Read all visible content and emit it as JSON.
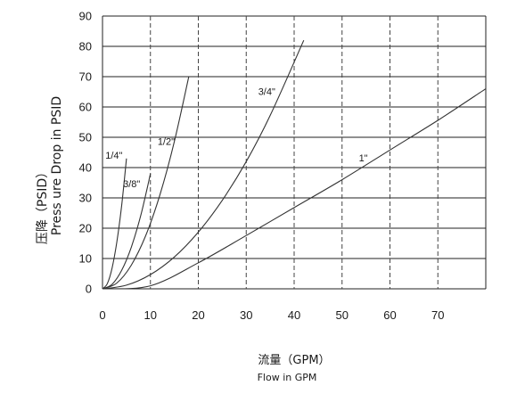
{
  "chart_data": {
    "type": "line",
    "title": "",
    "xlabel_cn": "流量（GPM）",
    "xlabel": "Flow in GPM",
    "ylabel_cn": "压降（PSID）",
    "ylabel": "Press ure Drop in PSID",
    "xlim": [
      0,
      80
    ],
    "ylim": [
      0,
      90
    ],
    "xticks": [
      "0",
      "10",
      "20",
      "30",
      "40",
      "50",
      "60",
      "70"
    ],
    "yticks": [
      "0",
      "10",
      "20",
      "30",
      "40",
      "50",
      "60",
      "70",
      "80",
      "90"
    ],
    "grid": true,
    "legend": "none",
    "series": [
      {
        "name": "1/4\"",
        "x": [
          0,
          1,
          2,
          3,
          4,
          5
        ],
        "y": [
          0,
          1.7,
          6.9,
          15.5,
          27.5,
          43
        ]
      },
      {
        "name": "3/8\"",
        "x": [
          0,
          2,
          4,
          6,
          8,
          10
        ],
        "y": [
          0,
          1.5,
          6.1,
          13.7,
          24.3,
          38
        ]
      },
      {
        "name": "1/2\"",
        "x": [
          0,
          3,
          6,
          9,
          12,
          15,
          18
        ],
        "y": [
          0,
          1.9,
          7.8,
          17.5,
          31.1,
          48.6,
          70
        ]
      },
      {
        "name": "3/4\"",
        "x": [
          0,
          5,
          10,
          15,
          20,
          25,
          30,
          35,
          42
        ],
        "y": [
          0,
          1.2,
          4.7,
          10.5,
          18.7,
          29.2,
          42.0,
          57.2,
          82
        ]
      },
      {
        "name": "1\"",
        "x": [
          0,
          10,
          20,
          30,
          40,
          50,
          60,
          70,
          80
        ],
        "y": [
          0,
          1.0,
          8.6,
          17.6,
          26.8,
          36.0,
          45.8,
          55.6,
          66
        ]
      }
    ]
  }
}
